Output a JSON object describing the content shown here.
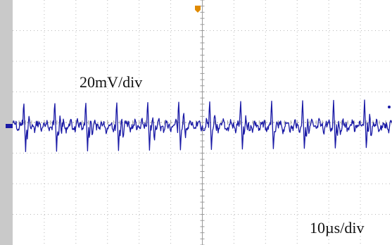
{
  "chart_data": {
    "type": "line",
    "grid": true,
    "grid_divisions": {
      "x": 12,
      "y": 8
    },
    "annotations": {
      "vertical_scale": "20mV/div",
      "horizontal_scale": "10µs/div"
    },
    "ylim": [
      -80,
      80
    ],
    "xlim": [
      0,
      120
    ],
    "series": [
      {
        "color": "#1a1aa6",
        "spike_period_div": 0.98,
        "spike_start_div": 0.35,
        "spike_amplitude_up_div": 0.9,
        "spike_amplitude_down_div": 0.85,
        "ripple_amplitude_div": 0.18
      }
    ],
    "markers": {
      "channel_marker_color": "#1a1aa6",
      "trigger_marker_color": "#e08a00"
    }
  }
}
